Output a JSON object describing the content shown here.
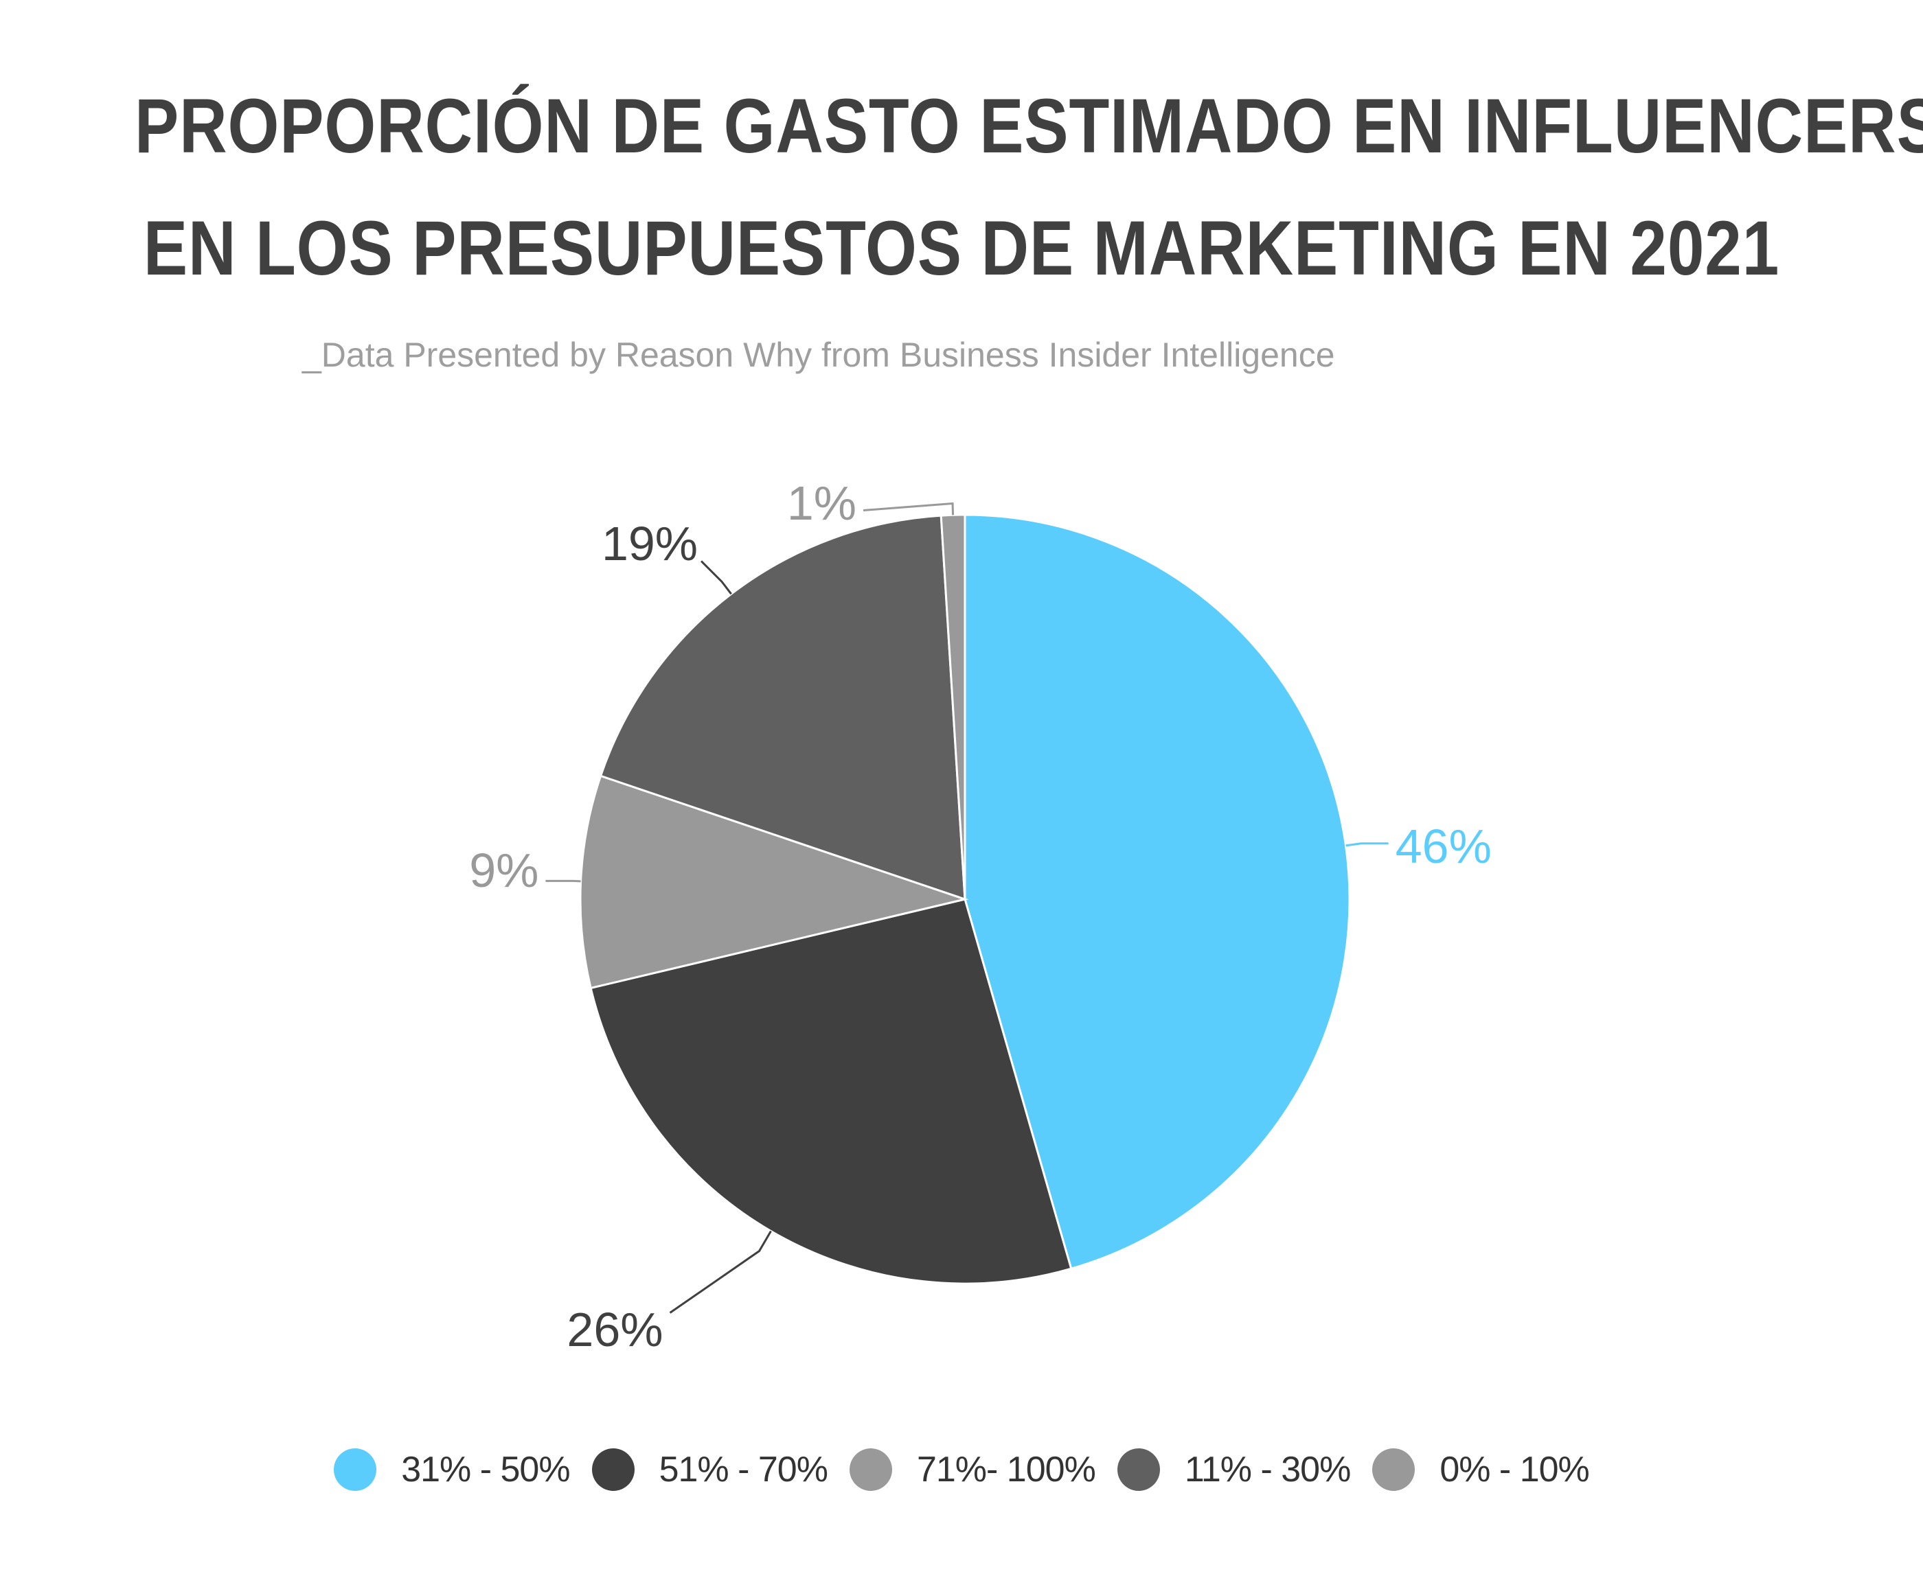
{
  "chart_data": {
    "type": "pie",
    "title_lines": [
      "PROPORCIÓN DE GASTO ESTIMADO EN INFLUENCERS",
      "EN LOS PRESUPUESTOS DE MARKETING EN 2021"
    ],
    "subtitle": "_Data Presented by Reason Why from Business Insider Intelligence",
    "start_angle_deg": 0,
    "direction": "clockwise",
    "legend_position": "bottom",
    "slices": [
      {
        "label": "31% - 50%",
        "value": 46,
        "data_label": "46%",
        "color": "#5BCDFC",
        "label_color": "#5BCDFC"
      },
      {
        "label": "51% - 70%",
        "value": 26,
        "data_label": "26%",
        "color": "#404040",
        "label_color": "#404040"
      },
      {
        "label": "71%- 100%",
        "value": 9,
        "data_label": "9%",
        "color": "#999999",
        "label_color": "#999999"
      },
      {
        "label": "11% - 30%",
        "value": 19,
        "data_label": "19%",
        "color": "#606060",
        "label_color": "#404040"
      },
      {
        "label": "0% - 10%",
        "value": 1,
        "data_label": "1%",
        "color": "#999999",
        "label_color": "#999999"
      }
    ]
  }
}
